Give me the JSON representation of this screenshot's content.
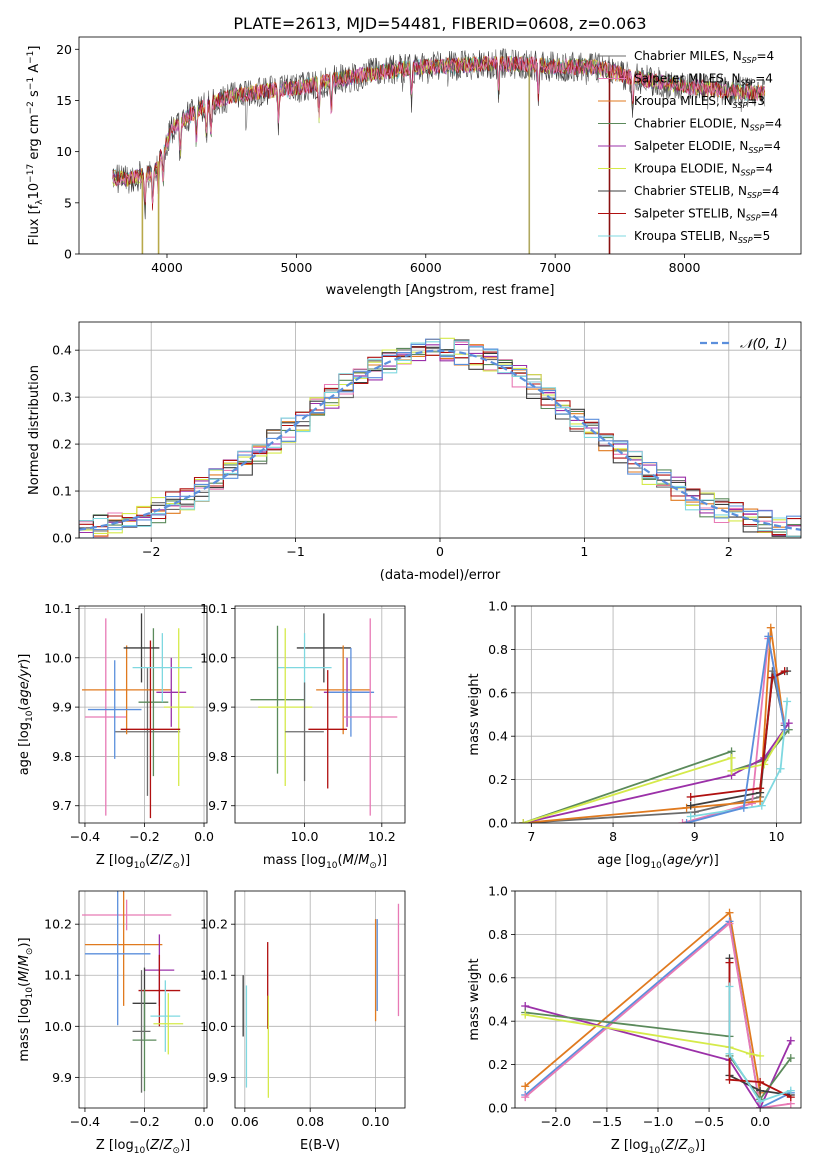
{
  "page": {
    "title": "PLATE=2613, MJD=54481, FIBERID=0608, z=0.063"
  },
  "legend_spectrum": [
    {
      "label": "Chabrier MILES, N",
      "sub": "SSP",
      "suffix": "=4",
      "color": "#6b6b6b"
    },
    {
      "label": "Salpeter MILES, N",
      "sub": "SSP",
      "suffix": "=4",
      "color": "#e87ab5"
    },
    {
      "label": "Kroupa MILES, N",
      "sub": "SSP",
      "suffix": "=3",
      "color": "#e07a1f"
    },
    {
      "label": "Chabrier ELODIE, N",
      "sub": "SSP",
      "suffix": "=4",
      "color": "#5b8a5b"
    },
    {
      "label": "Salpeter ELODIE, N",
      "sub": "SSP",
      "suffix": "=4",
      "color": "#9b30a8"
    },
    {
      "label": "Kroupa ELODIE, N",
      "sub": "SSP",
      "suffix": "=4",
      "color": "#d5ea4a"
    },
    {
      "label": "Chabrier STELIB, N",
      "sub": "SSP",
      "suffix": "=4",
      "color": "#3d3d3d"
    },
    {
      "label": "Salpeter STELIB, N",
      "sub": "SSP",
      "suffix": "=4",
      "color": "#b01010"
    },
    {
      "label": "Kroupa STELIB, N",
      "sub": "SSP",
      "suffix": "=5",
      "color": "#7fd8e0"
    }
  ],
  "legend_hist": {
    "label": "𝒩(0, 1)",
    "color": "#5b8fdc"
  },
  "model_colors": [
    "#6b6b6b",
    "#e87ab5",
    "#e07a1f",
    "#5b8a5b",
    "#9b30a8",
    "#d5ea4a",
    "#3d3d3d",
    "#b01010",
    "#7fd8e0",
    "#5b8fdc"
  ],
  "chart_data": [
    {
      "id": "spectrum",
      "type": "line",
      "xlabel": "wavelength [Angstrom, rest frame]",
      "ylabel": "Flux [f",
      "xlim": [
        3320,
        8900
      ],
      "ylim": [
        0,
        21.2
      ],
      "xticks": [
        4000,
        5000,
        6000,
        7000,
        8000
      ],
      "yticks": [
        0,
        5,
        10,
        15,
        20
      ],
      "x_range": [
        3580,
        8620
      ],
      "continuum": {
        "x": [
          3580,
          3700,
          3900,
          4050,
          4300,
          4500,
          4800,
          5000,
          5300,
          5600,
          5900,
          6200,
          6500,
          6800,
          7000,
          7300,
          7600,
          8000,
          8300,
          8620
        ],
        "y": [
          7.5,
          7.3,
          8.0,
          12.5,
          14.5,
          15.5,
          16.0,
          16.2,
          17.0,
          17.7,
          18.2,
          18.4,
          18.6,
          18.5,
          18.3,
          18.3,
          17.2,
          16.4,
          16.0,
          15.7
        ]
      },
      "spikes": [
        [
          3810,
          0
        ],
        [
          3935,
          0
        ],
        [
          6800,
          0
        ],
        [
          7420,
          0
        ]
      ]
    },
    {
      "id": "histogram",
      "type": "histogram",
      "xlabel": "(data-model)/error",
      "ylabel": "Normed distribution",
      "xlim": [
        -2.5,
        2.5
      ],
      "ylim": [
        0,
        0.46
      ],
      "xticks": [
        -2,
        -1,
        0,
        1,
        2
      ],
      "yticks": [
        0.0,
        0.1,
        0.2,
        0.3,
        0.4
      ],
      "bin_width": 0.1,
      "bin_start": -2.5,
      "normal": {
        "mu": 0,
        "sigma": 1
      }
    },
    {
      "id": "age_vs_Z",
      "type": "errorbar",
      "xlabel": "Z [log",
      "ylabel": "age  [log",
      "xlim": [
        -0.42,
        0.01
      ],
      "ylim": [
        9.665,
        10.105
      ],
      "xticks": [
        -0.4,
        -0.2,
        0.0
      ],
      "yticks": [
        9.7,
        9.8,
        9.9,
        10.0,
        10.1
      ],
      "points": [
        {
          "x": -0.19,
          "y": 9.85,
          "xerr": 0.11,
          "yerr": 0.13,
          "c": 0
        },
        {
          "x": -0.33,
          "y": 9.88,
          "xerr": 0.07,
          "yerr": 0.2,
          "c": 1
        },
        {
          "x": -0.26,
          "y": 9.935,
          "xerr": 0.15,
          "yerr": 0.09,
          "c": 2
        },
        {
          "x": -0.17,
          "y": 9.91,
          "xerr": 0.05,
          "yerr": 0.15,
          "c": 3
        },
        {
          "x": -0.11,
          "y": 9.93,
          "xerr": 0.05,
          "yerr": 0.07,
          "c": 4
        },
        {
          "x": -0.085,
          "y": 9.9,
          "xerr": 0.05,
          "yerr": 0.16,
          "c": 5
        },
        {
          "x": -0.21,
          "y": 10.02,
          "xerr": 0.06,
          "yerr": 0.07,
          "c": 6
        },
        {
          "x": -0.18,
          "y": 9.855,
          "xerr": 0.1,
          "yerr": 0.18,
          "c": 7
        },
        {
          "x": -0.14,
          "y": 9.98,
          "xerr": 0.1,
          "yerr": 0.07,
          "c": 8
        },
        {
          "x": -0.3,
          "y": 9.895,
          "xerr": 0.09,
          "yerr": 0.1,
          "c": 9
        }
      ]
    },
    {
      "id": "age_vs_mass",
      "type": "errorbar",
      "xlabel": "mass [log",
      "ylabel": "",
      "xlim": [
        9.82,
        10.26
      ],
      "ylim": [
        9.665,
        10.105
      ],
      "xticks": [
        10.0,
        10.2
      ],
      "yticks": [
        9.7,
        9.8,
        9.9,
        10.0,
        10.1
      ],
      "points": [
        {
          "x": 10.05,
          "y": 10.02,
          "xerr": 0.07,
          "yerr": 0.07,
          "c": 6
        },
        {
          "x": 10.0,
          "y": 9.98,
          "xerr": 0.07,
          "yerr": 0.07,
          "c": 8
        },
        {
          "x": 10.1,
          "y": 9.935,
          "xerr": 0.07,
          "yerr": 0.09,
          "c": 2
        },
        {
          "x": 10.11,
          "y": 9.93,
          "xerr": 0.06,
          "yerr": 0.07,
          "c": 4
        },
        {
          "x": 10.12,
          "y": 9.93,
          "xerr": 0.06,
          "yerr": 0.09,
          "c": 9
        },
        {
          "x": 9.93,
          "y": 9.915,
          "xerr": 0.07,
          "yerr": 0.15,
          "c": 3
        },
        {
          "x": 9.95,
          "y": 9.9,
          "xerr": 0.07,
          "yerr": 0.16,
          "c": 5
        },
        {
          "x": 10.17,
          "y": 9.88,
          "xerr": 0.07,
          "yerr": 0.2,
          "c": 1
        },
        {
          "x": 10.06,
          "y": 9.855,
          "xerr": 0.05,
          "yerr": 0.12,
          "c": 7
        },
        {
          "x": 10.0,
          "y": 9.85,
          "xerr": 0.05,
          "yerr": 0.1,
          "c": 0
        }
      ]
    },
    {
      "id": "weight_vs_age",
      "type": "line",
      "xlabel": "age  [log",
      "ylabel": "mass weight",
      "xlim": [
        6.8,
        10.3
      ],
      "ylim": [
        0,
        1.0
      ],
      "xticks": [
        7,
        8,
        9,
        10
      ],
      "yticks": [
        0.0,
        0.2,
        0.4,
        0.6,
        0.8,
        1.0
      ],
      "series": [
        {
          "c": 0,
          "x": [
            6.9,
            9.0,
            9.8,
            9.95,
            10.1
          ],
          "y": [
            0.0,
            0.05,
            0.12,
            0.7,
            0.45
          ]
        },
        {
          "c": 1,
          "x": [
            8.85,
            9.7,
            9.9,
            10.1
          ],
          "y": [
            0.0,
            0.09,
            0.85,
            0.46
          ]
        },
        {
          "c": 2,
          "x": [
            6.9,
            8.9,
            9.8,
            9.93,
            10.1
          ],
          "y": [
            0.0,
            0.07,
            0.1,
            0.9,
            0.43
          ]
        },
        {
          "c": 3,
          "x": [
            6.9,
            9.45,
            9.45,
            9.85,
            10.15
          ],
          "y": [
            0.0,
            0.33,
            0.24,
            0.29,
            0.43
          ]
        },
        {
          "c": 4,
          "x": [
            6.9,
            9.45,
            9.85,
            10.15
          ],
          "y": [
            0.0,
            0.22,
            0.3,
            0.46
          ]
        },
        {
          "c": 5,
          "x": [
            6.9,
            9.45,
            9.45,
            9.85,
            10.1
          ],
          "y": [
            0.0,
            0.3,
            0.24,
            0.27,
            0.43
          ]
        },
        {
          "c": 6,
          "x": [
            8.95,
            9.8,
            9.95,
            10.13
          ],
          "y": [
            0.08,
            0.14,
            0.67,
            0.7
          ]
        },
        {
          "c": 7,
          "x": [
            8.95,
            9.8,
            9.95,
            10.1
          ],
          "y": [
            0.12,
            0.16,
            0.67,
            0.7
          ]
        },
        {
          "c": 8,
          "x": [
            8.95,
            9.82,
            10.05,
            10.13
          ],
          "y": [
            0.03,
            0.08,
            0.25,
            0.56
          ]
        },
        {
          "c": 9,
          "x": [
            8.9,
            9.6,
            9.9,
            10.1
          ],
          "y": [
            0.0,
            0.07,
            0.86,
            0.43
          ]
        }
      ]
    },
    {
      "id": "mass_vs_Z",
      "type": "errorbar",
      "xlabel": "Z [log",
      "ylabel": "mass [log",
      "xlim": [
        -0.42,
        0.01
      ],
      "ylim": [
        9.84,
        10.265
      ],
      "xticks": [
        -0.4,
        -0.2,
        0.0
      ],
      "yticks": [
        9.9,
        10.0,
        10.1,
        10.2
      ],
      "points": [
        {
          "x": -0.26,
          "y": 10.218,
          "xerr": 0.15,
          "yerr": 0.03,
          "c": 1
        },
        {
          "x": -0.27,
          "y": 10.16,
          "xerr": 0.13,
          "yerr": 0.12,
          "c": 2
        },
        {
          "x": -0.29,
          "y": 10.142,
          "xerr": 0.11,
          "yerr": 0.14,
          "c": 9
        },
        {
          "x": -0.15,
          "y": 10.11,
          "xerr": 0.05,
          "yerr": 0.07,
          "c": 4
        },
        {
          "x": -0.15,
          "y": 10.07,
          "xerr": 0.07,
          "yerr": 0.07,
          "c": 7
        },
        {
          "x": -0.2,
          "y": 10.045,
          "xerr": 0.04,
          "yerr": 0.07,
          "c": 6
        },
        {
          "x": -0.13,
          "y": 10.02,
          "xerr": 0.05,
          "yerr": 0.07,
          "c": 8
        },
        {
          "x": -0.12,
          "y": 10.005,
          "xerr": 0.05,
          "yerr": 0.06,
          "c": 5
        },
        {
          "x": -0.2,
          "y": 9.973,
          "xerr": 0.04,
          "yerr": 0.1,
          "c": 3
        },
        {
          "x": -0.21,
          "y": 9.99,
          "xerr": 0.03,
          "yerr": 0.12,
          "c": 0
        }
      ]
    },
    {
      "id": "mass_vs_ebv",
      "type": "errorbar",
      "xlabel": "E(B-V)",
      "ylabel": "",
      "xlim": [
        0.057,
        0.109
      ],
      "ylim": [
        9.84,
        10.265
      ],
      "xticks": [
        0.06,
        0.08,
        0.1
      ],
      "yticks": [
        9.9,
        10.0,
        10.1,
        10.2
      ],
      "points": [
        {
          "x": 0.0595,
          "y": 10.04,
          "xerr": 0,
          "yerr": 0.06,
          "c": 6
        },
        {
          "x": 0.0605,
          "y": 9.98,
          "xerr": 0,
          "yerr": 0.1,
          "c": 8
        },
        {
          "x": 0.067,
          "y": 10.08,
          "xerr": 0,
          "yerr": 0.085,
          "c": 7
        },
        {
          "x": 0.0672,
          "y": 9.96,
          "xerr": 0,
          "yerr": 0.1,
          "c": 5
        },
        {
          "x": 0.1,
          "y": 10.11,
          "xerr": 0,
          "yerr": 0.1,
          "c": 2
        },
        {
          "x": 0.1005,
          "y": 10.12,
          "xerr": 0,
          "yerr": 0.09,
          "c": 9
        },
        {
          "x": 0.107,
          "y": 10.13,
          "xerr": 0,
          "yerr": 0.11,
          "c": 1
        }
      ]
    },
    {
      "id": "weight_vs_Z",
      "type": "line",
      "xlabel": "Z [log",
      "ylabel": "mass weight",
      "xlim": [
        -2.4,
        0.4
      ],
      "ylim": [
        0,
        1.0
      ],
      "xticks": [
        -2.0,
        -1.5,
        -1.0,
        -0.5,
        0.0
      ],
      "yticks": [
        0.0,
        0.2,
        0.4,
        0.6,
        0.8,
        1.0
      ],
      "series": [
        {
          "c": 2,
          "x": [
            -2.3,
            -0.3,
            0.0,
            0.0
          ],
          "y": [
            0.1,
            0.9,
            0.07,
            0.0
          ]
        },
        {
          "c": 9,
          "x": [
            -2.3,
            -0.3,
            0.0,
            0.3
          ],
          "y": [
            0.06,
            0.86,
            0.0,
            0.07
          ]
        },
        {
          "c": 1,
          "x": [
            -2.3,
            -0.3,
            0.0,
            0.3
          ],
          "y": [
            0.05,
            0.85,
            0.0,
            0.02
          ]
        },
        {
          "c": 4,
          "x": [
            -2.3,
            -0.3,
            0.0,
            0.3
          ],
          "y": [
            0.47,
            0.22,
            0.0,
            0.31
          ]
        },
        {
          "c": 3,
          "x": [
            -2.3,
            -0.3,
            -0.3,
            0.0,
            0.3
          ],
          "y": [
            0.44,
            0.33,
            0.24,
            0.04,
            0.23
          ]
        },
        {
          "c": 5,
          "x": [
            -2.3,
            -0.3,
            -0.1,
            0.0
          ],
          "y": [
            0.43,
            0.28,
            0.25,
            0.24
          ]
        },
        {
          "c": 6,
          "x": [
            -0.3,
            -0.3,
            0.0,
            0.3
          ],
          "y": [
            0.69,
            0.15,
            0.08,
            0.06
          ]
        },
        {
          "c": 7,
          "x": [
            -0.3,
            -0.3,
            0.0,
            0.3
          ],
          "y": [
            0.67,
            0.13,
            0.12,
            0.05
          ]
        },
        {
          "c": 8,
          "x": [
            -0.3,
            -0.3,
            0.0,
            0.3
          ],
          "y": [
            0.56,
            0.25,
            0.03,
            0.08
          ]
        }
      ]
    }
  ]
}
